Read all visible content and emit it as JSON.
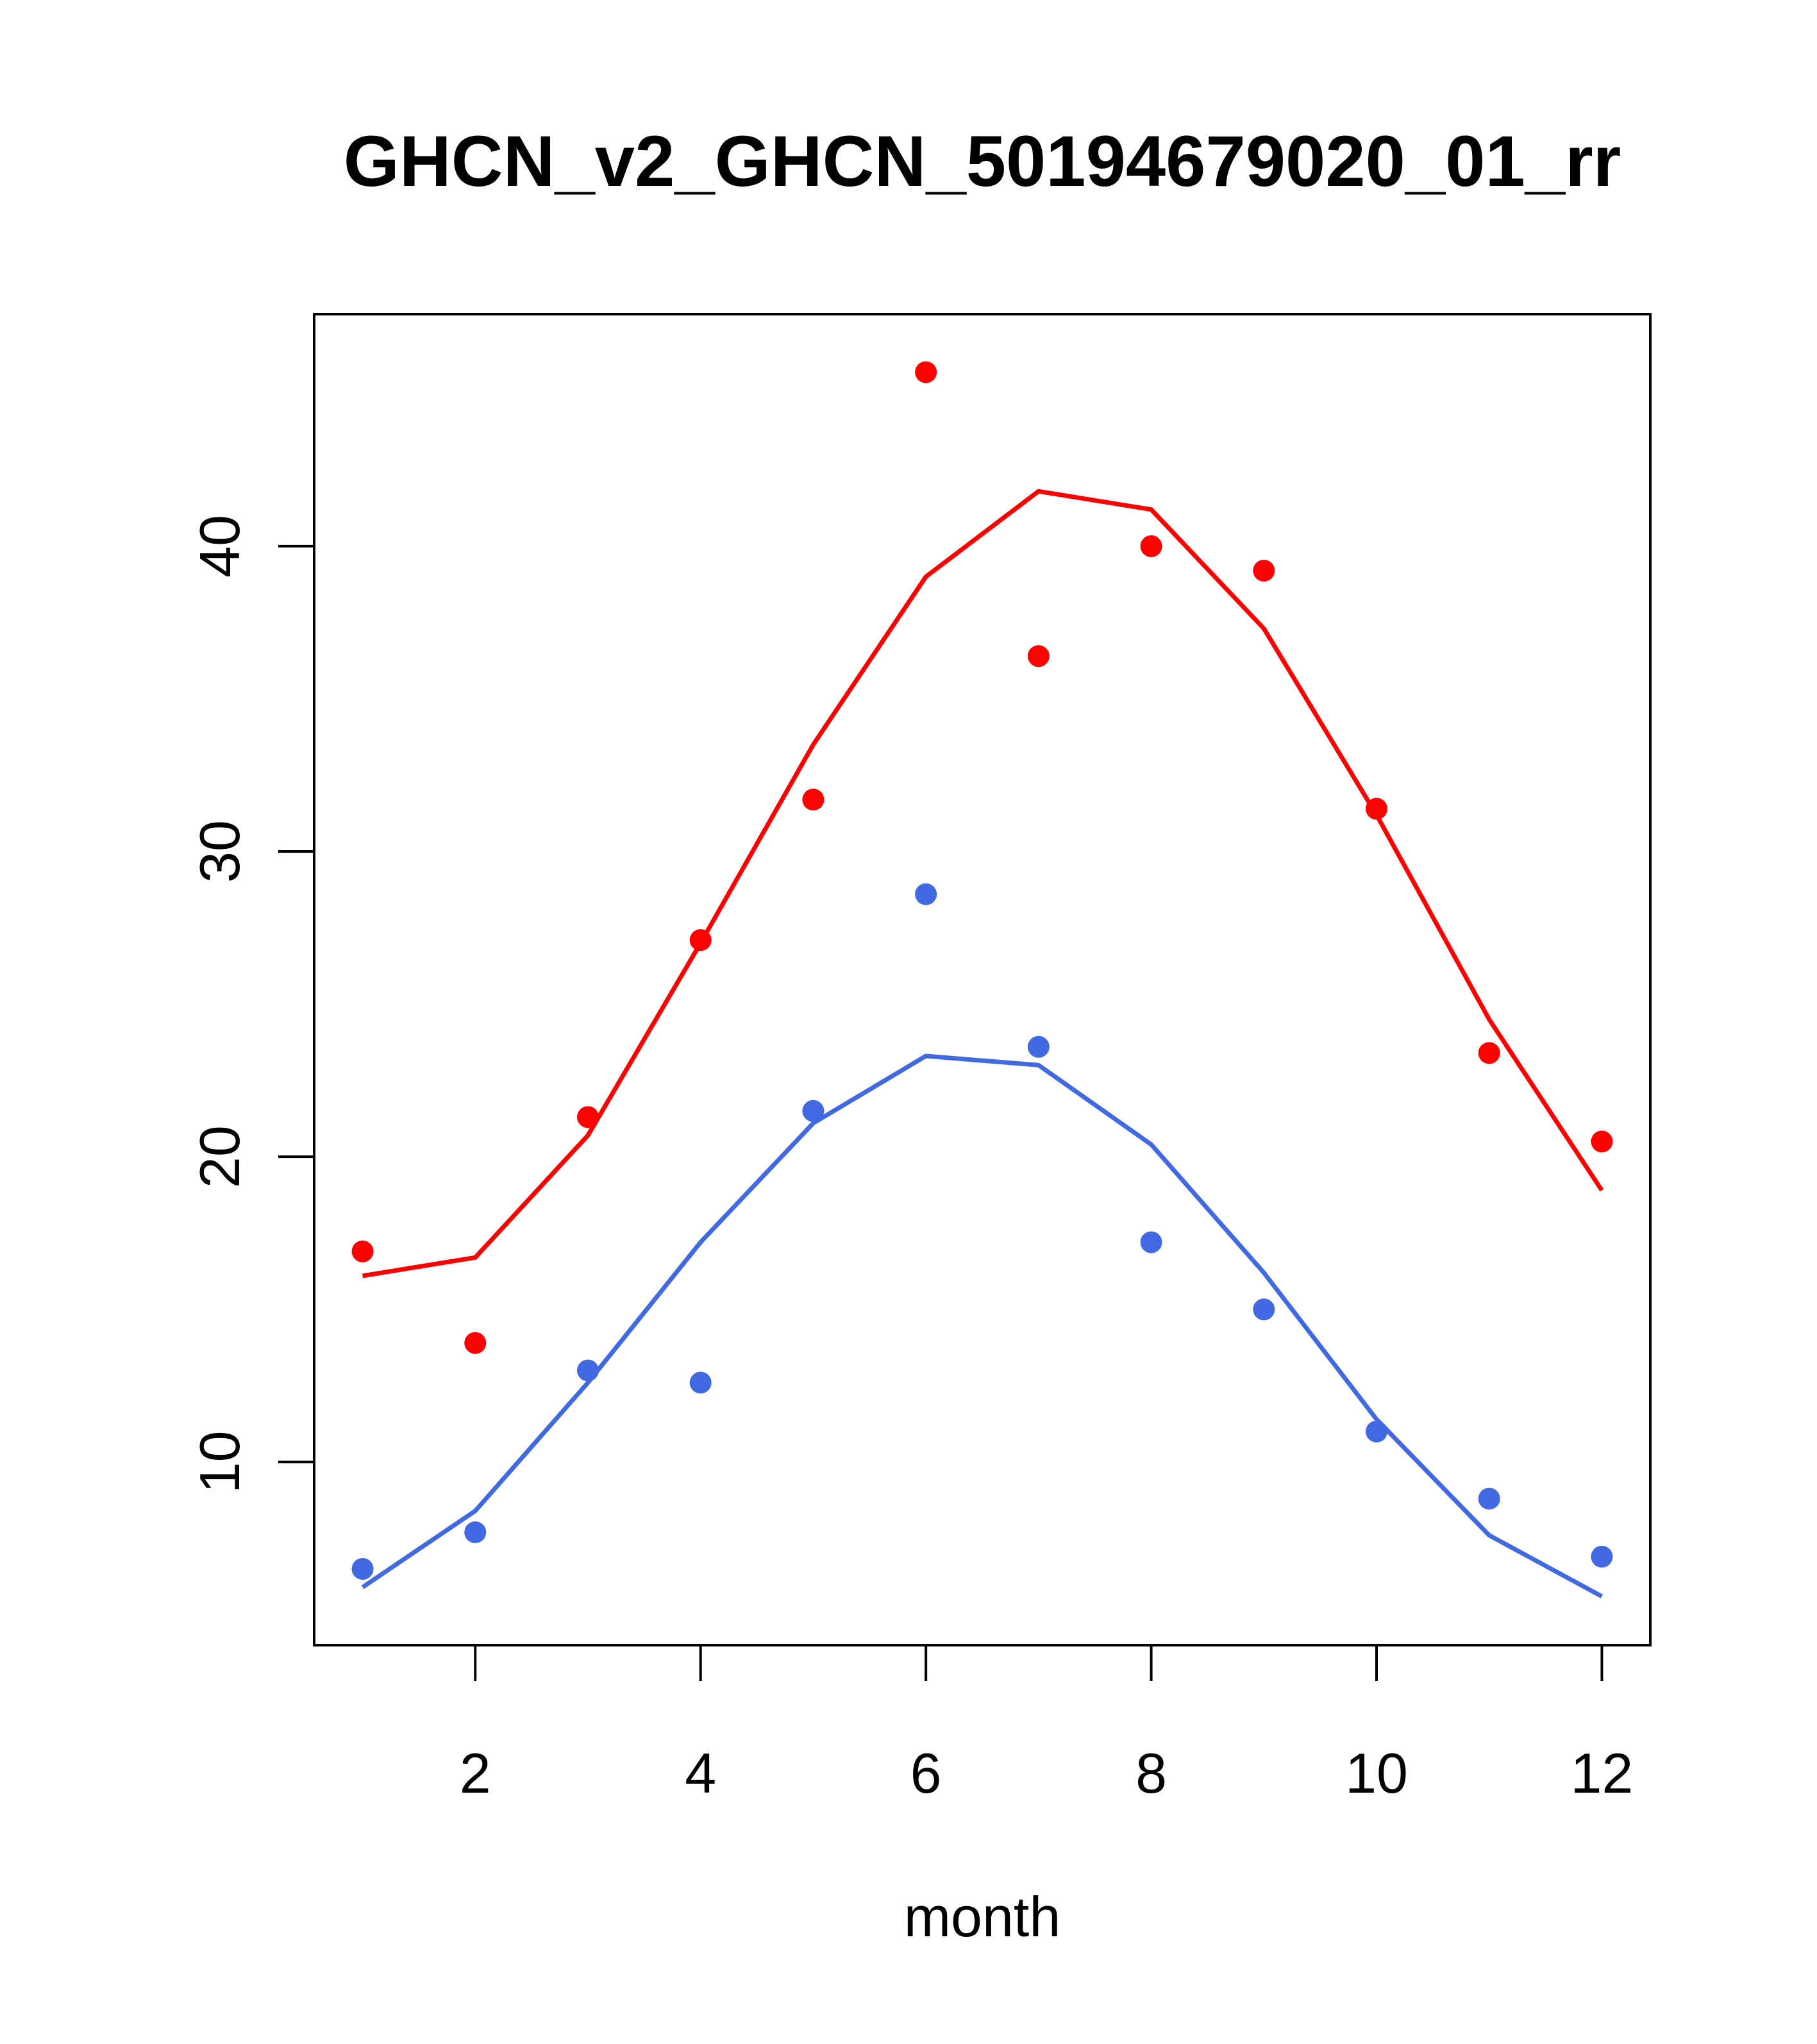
{
  "chart_data": {
    "type": "line",
    "title": "GHCN_v2_GHCN_50194679020_01_rr",
    "xlabel": "month",
    "ylabel": "",
    "xlim": [
      0.57,
      12.43
    ],
    "ylim": [
      4.0,
      47.6
    ],
    "x_ticks": [
      2,
      4,
      6,
      8,
      10,
      12
    ],
    "y_ticks": [
      10,
      20,
      30,
      40
    ],
    "x": [
      1,
      2,
      3,
      4,
      5,
      6,
      7,
      8,
      9,
      10,
      11,
      12
    ],
    "series": [
      {
        "color": "#ff0000",
        "points": [
          16.9,
          13.9,
          21.3,
          27.1,
          31.7,
          45.7,
          36.4,
          40.0,
          39.2,
          31.4,
          23.4,
          20.5
        ],
        "line": [
          16.1,
          16.7,
          20.7,
          27.0,
          33.5,
          39.0,
          41.8,
          41.2,
          37.3,
          31.2,
          24.5,
          18.9
        ]
      },
      {
        "color": "#4169e1",
        "points": [
          6.5,
          7.7,
          13.0,
          12.6,
          21.5,
          28.6,
          23.6,
          17.2,
          15.0,
          11.0,
          8.8,
          6.9
        ],
        "line": [
          5.9,
          8.4,
          12.6,
          17.2,
          21.1,
          23.3,
          23.0,
          20.4,
          16.2,
          11.4,
          7.6,
          5.6
        ]
      }
    ]
  }
}
